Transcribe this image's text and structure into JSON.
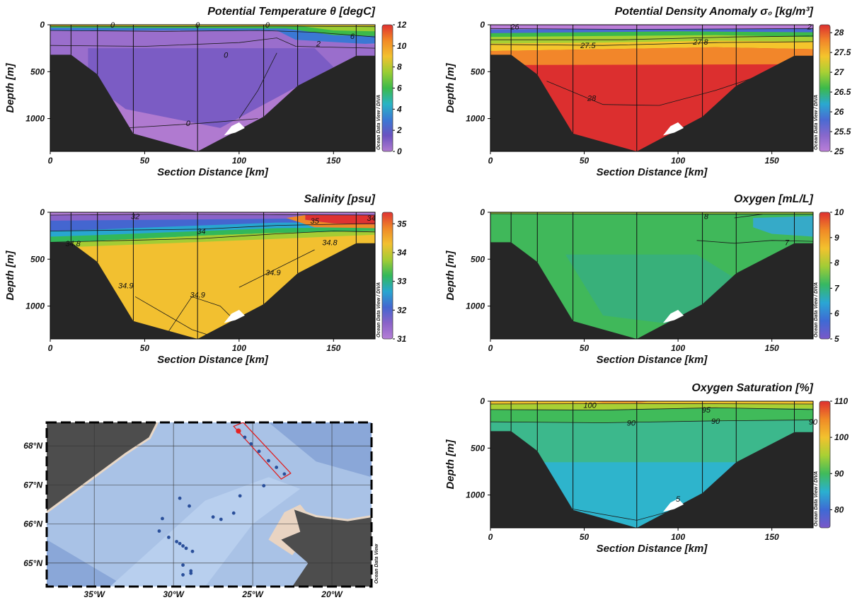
{
  "common": {
    "xlabel": "Section Distance [km]",
    "ylabel": "Depth [m]",
    "xticks": [
      "0",
      "50",
      "100",
      "150"
    ],
    "yticks": [
      "0",
      "500",
      "1000"
    ],
    "xlim": [
      0,
      172
    ],
    "ylim": [
      0,
      1350
    ],
    "odv_label": "Ocean Data View / DIVA",
    "station_km": [
      11,
      25,
      44,
      78,
      113,
      131,
      162
    ]
  },
  "chart_data": [
    {
      "type": "heatmap",
      "id": "temp",
      "title": "Potential Temperature θ [degC]",
      "colorbar_ticks": [
        "12",
        "10",
        "8",
        "6",
        "4",
        "2",
        "0"
      ],
      "colorbar_range": [
        0,
        12
      ],
      "contour_labels": [
        "0",
        "0",
        "0",
        "0",
        "6",
        "2",
        "0"
      ]
    },
    {
      "type": "heatmap",
      "id": "density",
      "title": "Potential Density Anomaly σ₀ [kg/m³]",
      "colorbar_ticks": [
        "28",
        "27.5",
        "27",
        "26.5",
        "26",
        "25.5",
        "25"
      ],
      "colorbar_range": [
        25,
        28.2
      ],
      "contour_labels": [
        "26",
        "2",
        "27.5",
        "27.8",
        "28"
      ]
    },
    {
      "type": "heatmap",
      "id": "salinity",
      "title": "Salinity [psu]",
      "colorbar_ticks": [
        "35",
        "34",
        "33",
        "32",
        "31"
      ],
      "colorbar_range": [
        31,
        35.4
      ],
      "contour_labels": [
        "32",
        "34",
        "35",
        "34",
        "34.8",
        "34.8",
        "34.9",
        "34.9",
        "34.9"
      ]
    },
    {
      "type": "heatmap",
      "id": "oxygen",
      "title": "Oxygen [mL/L]",
      "colorbar_ticks": [
        "10",
        "9",
        "8",
        "7",
        "6",
        "5"
      ],
      "colorbar_range": [
        5,
        10
      ],
      "contour_labels": [
        "8",
        "7"
      ]
    },
    {
      "type": "heatmap",
      "id": "oxysat",
      "title": "Oxygen Saturation [%]",
      "colorbar_ticks": [
        "110",
        "100",
        "90",
        "80"
      ],
      "colorbar_range": [
        75,
        110
      ],
      "contour_labels": [
        "100",
        "95",
        "90",
        "90",
        "90",
        "5"
      ]
    },
    {
      "type": "scatter",
      "id": "map",
      "xticks": [
        "35°W",
        "30°W",
        "25°W",
        "20°W"
      ],
      "yticks": [
        "68°N",
        "67°N",
        "66°N",
        "65°N"
      ],
      "xlim": [
        -38,
        -17.5
      ],
      "ylim": [
        64.4,
        68.6
      ],
      "side_label": "Ocean Data View",
      "stations": [
        {
          "lon": -25.9,
          "lat": 68.38
        },
        {
          "lon": -25.5,
          "lat": 68.22
        },
        {
          "lon": -25.1,
          "lat": 68.05
        },
        {
          "lon": -24.6,
          "lat": 67.86
        },
        {
          "lon": -24.0,
          "lat": 67.62
        },
        {
          "lon": -23.5,
          "lat": 67.45
        },
        {
          "lon": -23.0,
          "lat": 67.28
        },
        {
          "lon": -24.3,
          "lat": 66.98
        },
        {
          "lon": -25.8,
          "lat": 66.72
        },
        {
          "lon": -26.2,
          "lat": 66.28
        },
        {
          "lon": -27.0,
          "lat": 66.12
        },
        {
          "lon": -27.5,
          "lat": 66.18
        },
        {
          "lon": -29.0,
          "lat": 66.46
        },
        {
          "lon": -29.6,
          "lat": 66.66
        },
        {
          "lon": -30.7,
          "lat": 66.14
        },
        {
          "lon": -30.9,
          "lat": 65.82
        },
        {
          "lon": -30.3,
          "lat": 65.66
        },
        {
          "lon": -29.8,
          "lat": 65.55
        },
        {
          "lon": -29.6,
          "lat": 65.5
        },
        {
          "lon": -29.4,
          "lat": 65.44
        },
        {
          "lon": -29.2,
          "lat": 65.38
        },
        {
          "lon": -28.8,
          "lat": 65.3
        },
        {
          "lon": -29.4,
          "lat": 64.95
        },
        {
          "lon": -28.9,
          "lat": 64.8
        },
        {
          "lon": -28.9,
          "lat": 64.74
        },
        {
          "lon": -29.4,
          "lat": 64.7
        }
      ],
      "highlight_station": {
        "lon": -25.9,
        "lat": 68.38
      }
    }
  ],
  "colors": {
    "bathymetry": "#262626",
    "land": "#4d4d4d",
    "highlight_box": "#e02020",
    "station_dot": "#2a4f9a",
    "highlight_dot": "#e52222"
  }
}
